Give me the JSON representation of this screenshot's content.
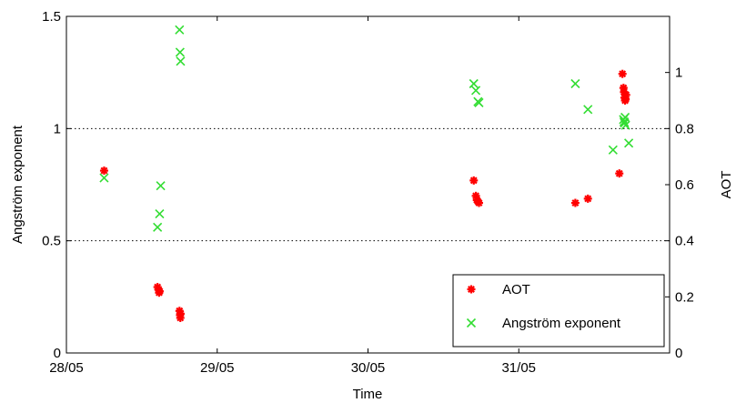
{
  "chart_data": {
    "type": "scatter",
    "title": "",
    "xlabel": "Time",
    "ylabel_left": "Angström exponent",
    "ylabel_right": "AOT",
    "x_ticks": [
      "28/05",
      "29/05",
      "30/05",
      "31/05"
    ],
    "x_range_days": [
      "28/05",
      "01/06"
    ],
    "ylim_left": [
      0,
      1.5
    ],
    "yticks_left": [
      "0",
      "0.5",
      "1",
      "1.5"
    ],
    "ylim_right": [
      0,
      1.2
    ],
    "yticks_right": [
      "0",
      "0.2",
      "0.4",
      "0.6",
      "0.8",
      "1"
    ],
    "grid": "horizontal dotted at left-axis 0.5, 1, 1.5",
    "legend_position": "bottom-right",
    "series": [
      {
        "name": "AOT",
        "axis": "right",
        "marker": "asterisk",
        "color": "#ff0000",
        "x": [
          "28/05 06:00",
          "28/05 14:30",
          "28/05 14:40",
          "28/05 14:45",
          "28/05 14:50",
          "28/05 18:00",
          "28/05 18:05",
          "28/05 18:08",
          "28/05 18:10",
          "30/05 16:50",
          "30/05 17:10",
          "30/05 17:20",
          "30/05 17:30",
          "30/05 17:40",
          "31/05 09:00",
          "31/05 11:00",
          "31/05 16:00",
          "31/05 16:30",
          "31/05 16:40",
          "31/05 16:45",
          "31/05 16:50",
          "31/05 16:55",
          "31/05 17:00",
          "31/05 17:05"
        ],
        "y": [
          0.65,
          0.235,
          0.225,
          0.215,
          0.22,
          0.15,
          0.135,
          0.125,
          0.14,
          0.615,
          0.56,
          0.545,
          0.54,
          0.535,
          0.535,
          0.55,
          0.64,
          0.995,
          0.945,
          0.93,
          0.91,
          0.9,
          0.905,
          0.92
        ]
      },
      {
        "name": "Angström exponent",
        "axis": "left",
        "marker": "x",
        "color": "#33dd33",
        "x": [
          "28/05 06:00",
          "28/05 14:30",
          "28/05 14:50",
          "28/05 15:00",
          "28/05 18:00",
          "28/05 18:05",
          "28/05 18:10",
          "30/05 16:50",
          "30/05 17:10",
          "30/05 17:30",
          "30/05 17:40",
          "31/05 09:00",
          "31/05 11:00",
          "31/05 15:00",
          "31/05 16:40",
          "31/05 16:45",
          "31/05 16:50",
          "31/05 16:55",
          "31/05 17:00",
          "31/05 17:30"
        ],
        "y": [
          0.78,
          0.56,
          0.62,
          0.745,
          1.44,
          1.34,
          1.3,
          1.2,
          1.17,
          1.12,
          1.115,
          1.2,
          1.085,
          0.905,
          1.04,
          1.03,
          1.025,
          1.05,
          1.015,
          0.935
        ]
      }
    ]
  }
}
